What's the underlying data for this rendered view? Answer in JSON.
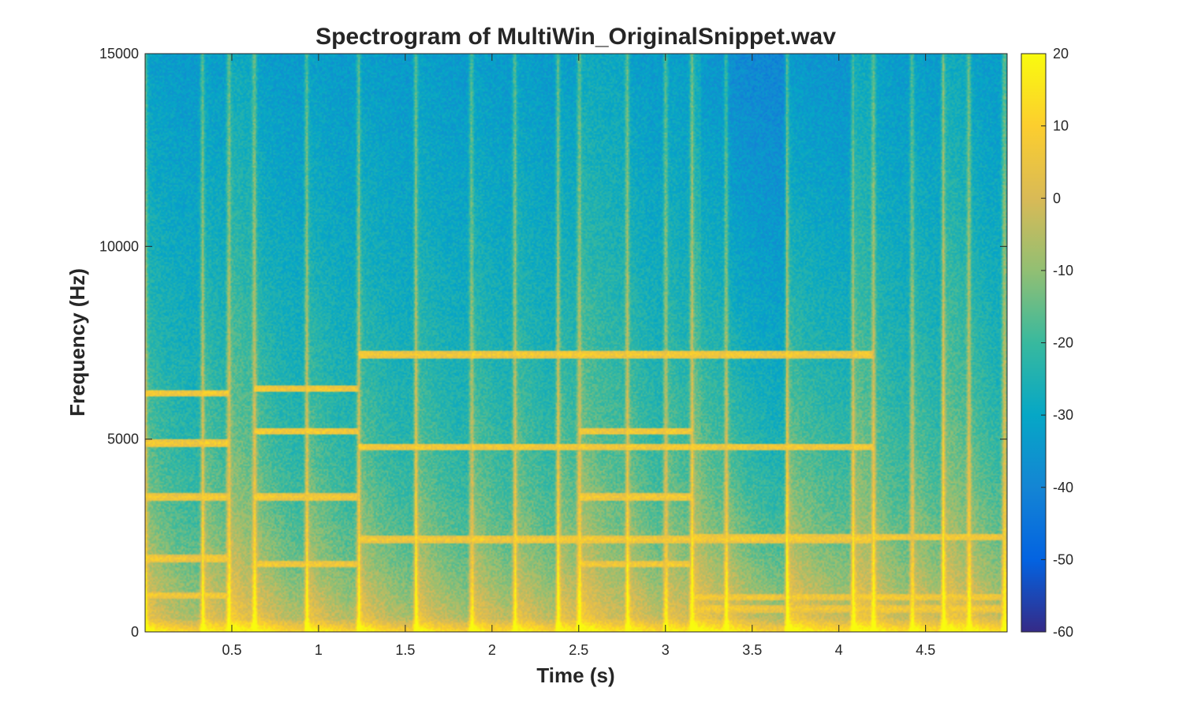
{
  "figure": {
    "title": "Spectrogram of MultiWin_OriginalSnippet.wav"
  },
  "chart_data": {
    "type": "heatmap",
    "title": "Spectrogram of MultiWin_OriginalSnippet.wav",
    "xlabel": "Time (s)",
    "ylabel": "Frequency (Hz)",
    "xlim": [
      0,
      4.97
    ],
    "ylim": [
      0,
      15000
    ],
    "x_ticks": [
      0.5,
      1,
      1.5,
      2,
      2.5,
      3,
      3.5,
      4,
      4.5
    ],
    "x_tick_labels": [
      "0.5",
      "1",
      "1.5",
      "2",
      "2.5",
      "3",
      "3.5",
      "4",
      "4.5"
    ],
    "y_ticks": [
      0,
      5000,
      10000,
      15000
    ],
    "y_tick_labels": [
      "0",
      "5000",
      "10000",
      "15000"
    ],
    "colorbar": {
      "clim": [
        -60,
        20
      ],
      "ticks": [
        20,
        10,
        0,
        -10,
        -20,
        -30,
        -40,
        -50,
        -60
      ],
      "tick_labels": [
        "20",
        "10",
        "0",
        "-10",
        "-20",
        "-30",
        "-40",
        "-50",
        "-60"
      ],
      "colormap": "parula",
      "colormap_stops": [
        "#352a87",
        "#0363e1",
        "#1485d4",
        "#06a7c6",
        "#38b99e",
        "#92bf73",
        "#d9ba56",
        "#fcce2e",
        "#f9fb0e"
      ]
    },
    "onsets_s": [
      0.0,
      0.33,
      0.48,
      0.63,
      0.93,
      1.23,
      1.56,
      1.88,
      2.13,
      2.38,
      2.5,
      2.78,
      3.0,
      3.15,
      3.35,
      3.7,
      4.08,
      4.2,
      4.42,
      4.6,
      4.75,
      4.95
    ],
    "harmonic_lines": [
      {
        "t_start": 0.0,
        "t_end": 0.48,
        "f_hz": [
          1900,
          950,
          3500,
          4900,
          6200
        ]
      },
      {
        "t_start": 0.63,
        "t_end": 1.23,
        "f_hz": [
          1750,
          3500,
          5200,
          6300
        ]
      },
      {
        "t_start": 1.23,
        "t_end": 4.2,
        "f_hz": [
          2400,
          4800,
          7200
        ]
      },
      {
        "t_start": 2.5,
        "t_end": 3.15,
        "f_hz": [
          1750,
          3500,
          5200
        ]
      },
      {
        "t_start": 3.15,
        "t_end": 4.95,
        "f_hz": [
          600,
          2450,
          900
        ]
      }
    ]
  }
}
